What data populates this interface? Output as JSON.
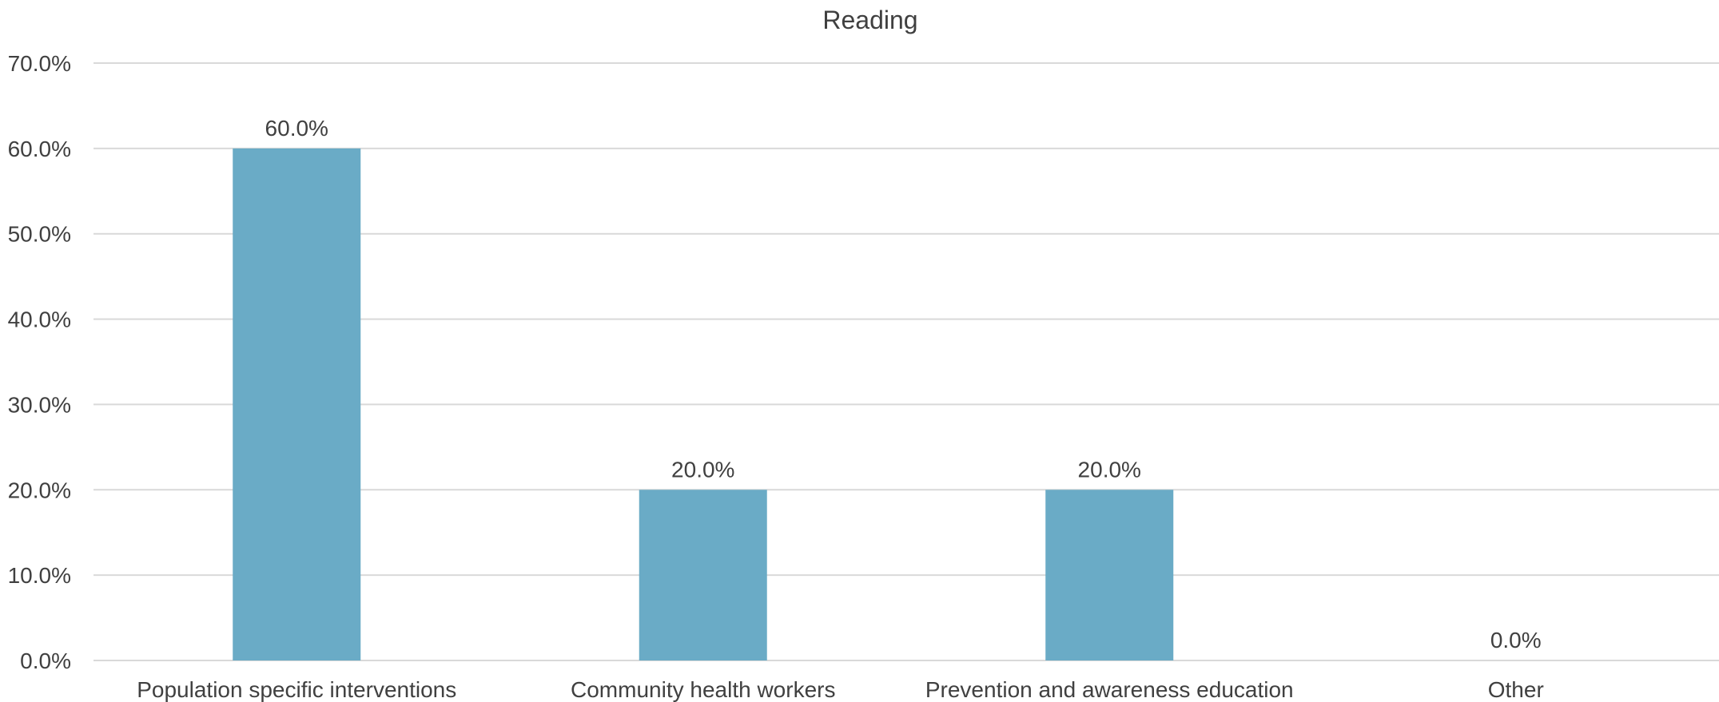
{
  "chart_data": {
    "type": "bar",
    "title": "Reading",
    "categories": [
      "Population specific interventions",
      "Community health workers",
      "Prevention and awareness education",
      "Other"
    ],
    "values": [
      60.0,
      20.0,
      20.0,
      0.0
    ],
    "data_labels": [
      "60.0%",
      "20.0%",
      "20.0%",
      "0.0%"
    ],
    "y_ticks": [
      0,
      10,
      20,
      30,
      40,
      50,
      60,
      70
    ],
    "y_tick_labels": [
      "0.0%",
      "10.0%",
      "20.0%",
      "30.0%",
      "40.0%",
      "50.0%",
      "60.0%",
      "70.0%"
    ],
    "ylim": [
      0,
      70
    ],
    "xlabel": "",
    "ylabel": "",
    "grid": true,
    "legend": "none",
    "bar_color": "#6aabc6",
    "grid_color": "#d9d9d9",
    "text_color": "#404040"
  }
}
